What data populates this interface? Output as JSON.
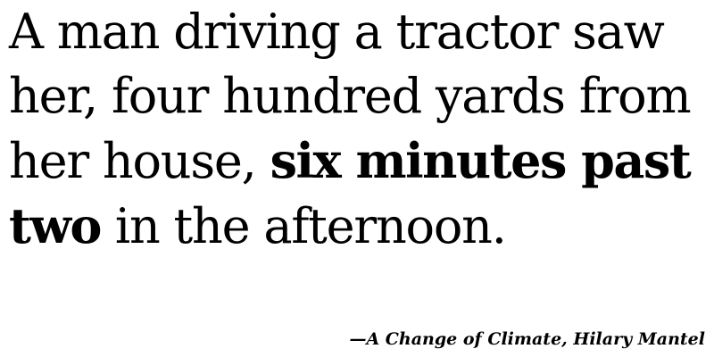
{
  "quote": {
    "text_before": "A man driving a tractor saw her, four hundred yards from her house, ",
    "bold_text": "six minutes past two",
    "text_after": " in the afternoon."
  },
  "attribution": "—A Change of Climate, Hilary Mantel"
}
